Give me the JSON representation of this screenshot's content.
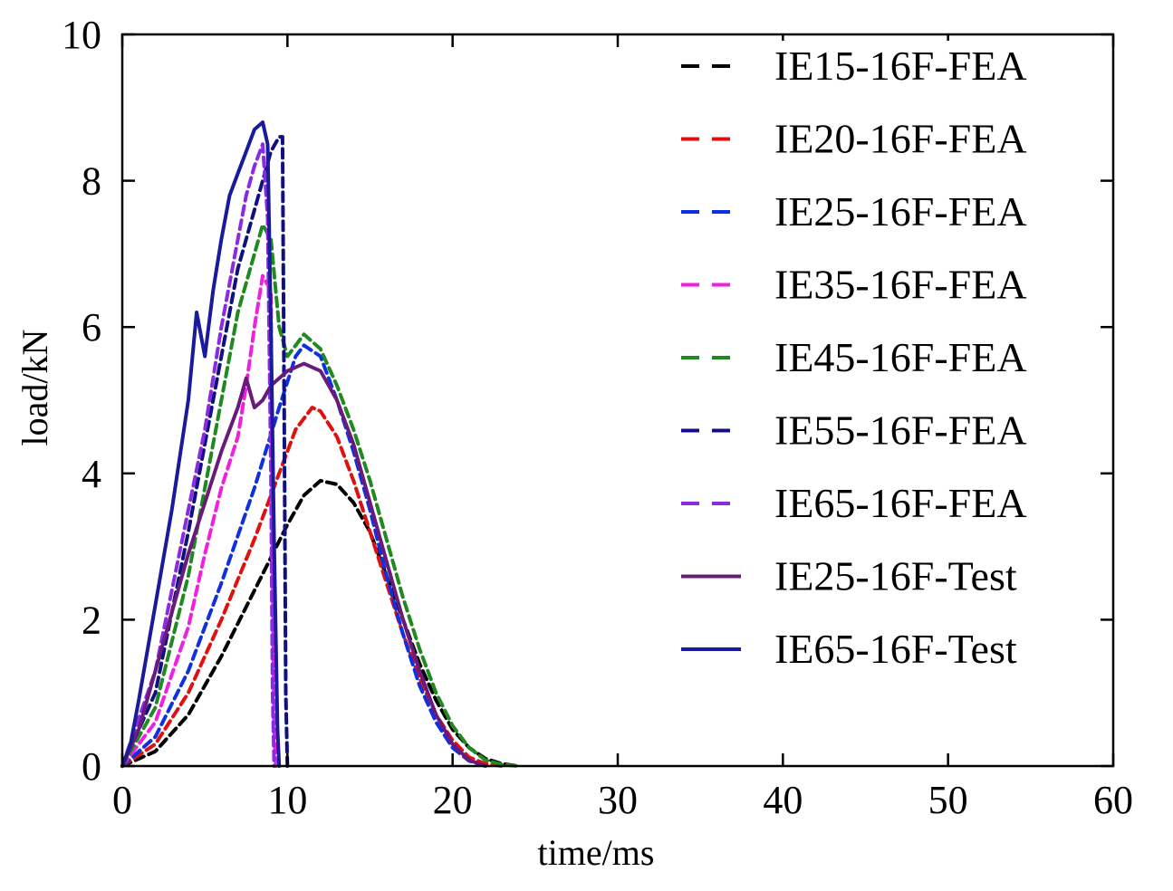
{
  "chart_data": {
    "type": "line",
    "xlabel": "time/ms",
    "ylabel": "load/kN",
    "xlim": [
      0,
      60
    ],
    "ylim": [
      0,
      10
    ],
    "xticks": [
      0,
      10,
      20,
      30,
      40,
      50,
      60
    ],
    "yticks": [
      0,
      2,
      4,
      6,
      8,
      10
    ],
    "grid": false,
    "legend_position": "top-right",
    "series": [
      {
        "name": "IE15-16F-FEA",
        "color": "#000000",
        "style": "dashed",
        "x": [
          0,
          2,
          4,
          6,
          8,
          10,
          11,
          12,
          13,
          14,
          15,
          16,
          17,
          18,
          19,
          20,
          21,
          22,
          23,
          24
        ],
        "y": [
          0,
          0.2,
          0.7,
          1.5,
          2.4,
          3.3,
          3.7,
          3.9,
          3.85,
          3.6,
          3.2,
          2.6,
          2.0,
          1.4,
          0.9,
          0.5,
          0.25,
          0.1,
          0.03,
          0
        ]
      },
      {
        "name": "IE20-16F-FEA",
        "color": "#e01010",
        "style": "dashed",
        "x": [
          0,
          2,
          4,
          6,
          8,
          9.5,
          10.5,
          11.5,
          12,
          13,
          14,
          15,
          16,
          17,
          18,
          19,
          20,
          21,
          22,
          23
        ],
        "y": [
          0,
          0.3,
          1.0,
          2.0,
          3.1,
          4.0,
          4.6,
          4.9,
          4.85,
          4.5,
          3.9,
          3.2,
          2.5,
          1.8,
          1.2,
          0.7,
          0.35,
          0.12,
          0.03,
          0
        ]
      },
      {
        "name": "IE25-16F-FEA",
        "color": "#1030e0",
        "style": "dashed",
        "x": [
          0,
          2,
          4,
          6,
          8,
          9.5,
          10.5,
          11,
          12,
          13,
          14,
          15,
          16,
          17,
          18,
          19,
          20,
          21,
          22
        ],
        "y": [
          0,
          0.4,
          1.3,
          2.5,
          3.8,
          4.9,
          5.6,
          5.75,
          5.6,
          5.0,
          4.3,
          3.5,
          2.6,
          1.8,
          1.1,
          0.6,
          0.25,
          0.07,
          0
        ]
      },
      {
        "name": "IE35-16F-FEA",
        "color": "#f020e0",
        "style": "dashed",
        "x": [
          0,
          2,
          4,
          5,
          6,
          7,
          7.5,
          8,
          8.5,
          9,
          9.1,
          9.2,
          9.3
        ],
        "y": [
          0,
          0.6,
          1.9,
          2.9,
          3.8,
          4.5,
          5.2,
          6.0,
          6.7,
          6.5,
          3.0,
          0.5,
          0
        ]
      },
      {
        "name": "IE45-16F-FEA",
        "color": "#208a20",
        "style": "dashed",
        "x": [
          0,
          2,
          4,
          6,
          7,
          8,
          8.5,
          9,
          9.5,
          10,
          11,
          12,
          13,
          14,
          15,
          16,
          17,
          18,
          19,
          20,
          21,
          22,
          23,
          24
        ],
        "y": [
          0,
          0.8,
          2.6,
          5.0,
          6.2,
          7.0,
          7.4,
          7.2,
          6.0,
          5.6,
          5.9,
          5.7,
          5.2,
          4.6,
          3.9,
          3.1,
          2.3,
          1.6,
          1.0,
          0.55,
          0.25,
          0.08,
          0.02,
          0
        ]
      },
      {
        "name": "IE55-16F-FEA",
        "color": "#101080",
        "style": "dashed",
        "x": [
          0,
          2,
          4,
          6,
          7,
          8,
          8.5,
          9,
          9.5,
          9.7,
          9.8,
          9.9,
          10
        ],
        "y": [
          0,
          1.0,
          3.2,
          5.6,
          6.8,
          7.6,
          8.0,
          8.4,
          8.6,
          8.6,
          5.0,
          1.0,
          0
        ]
      },
      {
        "name": "IE65-16F-FEA",
        "color": "#8a2be2",
        "style": "dashed",
        "x": [
          0,
          2,
          4,
          5,
          6,
          7,
          7.5,
          8,
          8.5,
          8.8,
          9,
          9.1,
          9.2
        ],
        "y": [
          0,
          1.3,
          3.5,
          4.6,
          6.0,
          7.2,
          7.8,
          8.2,
          8.5,
          7.5,
          4.0,
          1.0,
          0
        ]
      },
      {
        "name": "IE25-16F-Test",
        "color": "#6a1a7a",
        "style": "solid",
        "x": [
          0,
          1,
          2,
          3,
          4,
          5,
          6,
          7,
          7.5,
          8,
          8.5,
          9,
          10,
          11,
          12,
          13,
          14,
          15,
          16,
          17,
          18,
          19,
          20,
          21,
          22
        ],
        "y": [
          0,
          0.5,
          1.3,
          2.1,
          2.9,
          3.6,
          4.3,
          4.9,
          5.3,
          4.9,
          5.0,
          5.2,
          5.4,
          5.5,
          5.4,
          5.0,
          4.4,
          3.6,
          2.8,
          2.0,
          1.3,
          0.7,
          0.3,
          0.08,
          0
        ]
      },
      {
        "name": "IE65-16F-Test",
        "color": "#1a1a9a",
        "style": "solid",
        "x": [
          0,
          0.5,
          1,
          2,
          3,
          4,
          4.5,
          5,
          5.5,
          6,
          6.5,
          7,
          7.5,
          8,
          8.5,
          8.8,
          9,
          9.2,
          9.4,
          9.5
        ],
        "y": [
          0,
          0.3,
          0.9,
          2.2,
          3.5,
          5.0,
          6.2,
          5.6,
          6.5,
          7.2,
          7.8,
          8.1,
          8.4,
          8.7,
          8.8,
          8.5,
          6.0,
          3.0,
          0.5,
          0
        ]
      }
    ]
  }
}
